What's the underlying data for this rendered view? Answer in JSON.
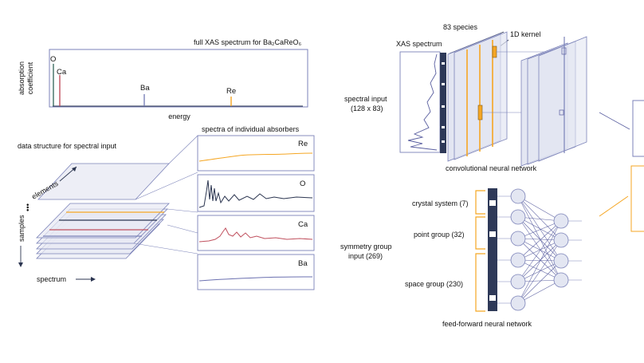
{
  "colors": {
    "frame": "#7b82b8",
    "layer_fill": "#e8eaf4",
    "dark_bar": "#2e3958",
    "orange": "#f5a623",
    "red": "#c0505e",
    "green": "#3e6e62",
    "navy": "#2b3550",
    "purple_line": "#6b70b0"
  },
  "xas_panel": {
    "title": "full XAS spectrum for Ba₂CaReO₆",
    "ylabel_line1": "absorption",
    "ylabel_line2": "coefficient",
    "xlabel": "energy",
    "peaks": [
      {
        "label": "O",
        "color": "#3e6e62",
        "height": 0.92
      },
      {
        "label": "Ca",
        "color": "#c0505e",
        "height": 0.72
      },
      {
        "label": "Ba",
        "color": "#7b82b8",
        "height": 0.28
      },
      {
        "label": "Re",
        "color": "#f5a623",
        "height": 0.22
      }
    ]
  },
  "data_structure": {
    "title": "data structure for spectral input",
    "elements_label": "elements",
    "samples_label": "samples",
    "spectrum_label": "spectrum",
    "ellipsis": "•••"
  },
  "absorbers": {
    "title": "spectra of individual absorbers",
    "panels": [
      {
        "label": "Re",
        "color": "#f5a623"
      },
      {
        "label": "O",
        "color": "#2b3550"
      },
      {
        "label": "Ca",
        "color": "#c0505e"
      },
      {
        "label": "Ba",
        "color": "#6b70b0"
      }
    ]
  },
  "cnn": {
    "species_label": "83 species",
    "xas_label": "XAS spectrum",
    "kernel_label": "1D kernel",
    "input_label_line1": "spectral input",
    "input_label_line2": "(128 x 83)",
    "caption": "convolutional neural network"
  },
  "ffnn": {
    "input_label_line1": "symmetry group",
    "input_label_line2": "input (269)",
    "crystal_system": "crystal system (7)",
    "point_group": "point group (32)",
    "space_group": "space group (230)",
    "caption": "feed-forward neural network"
  }
}
